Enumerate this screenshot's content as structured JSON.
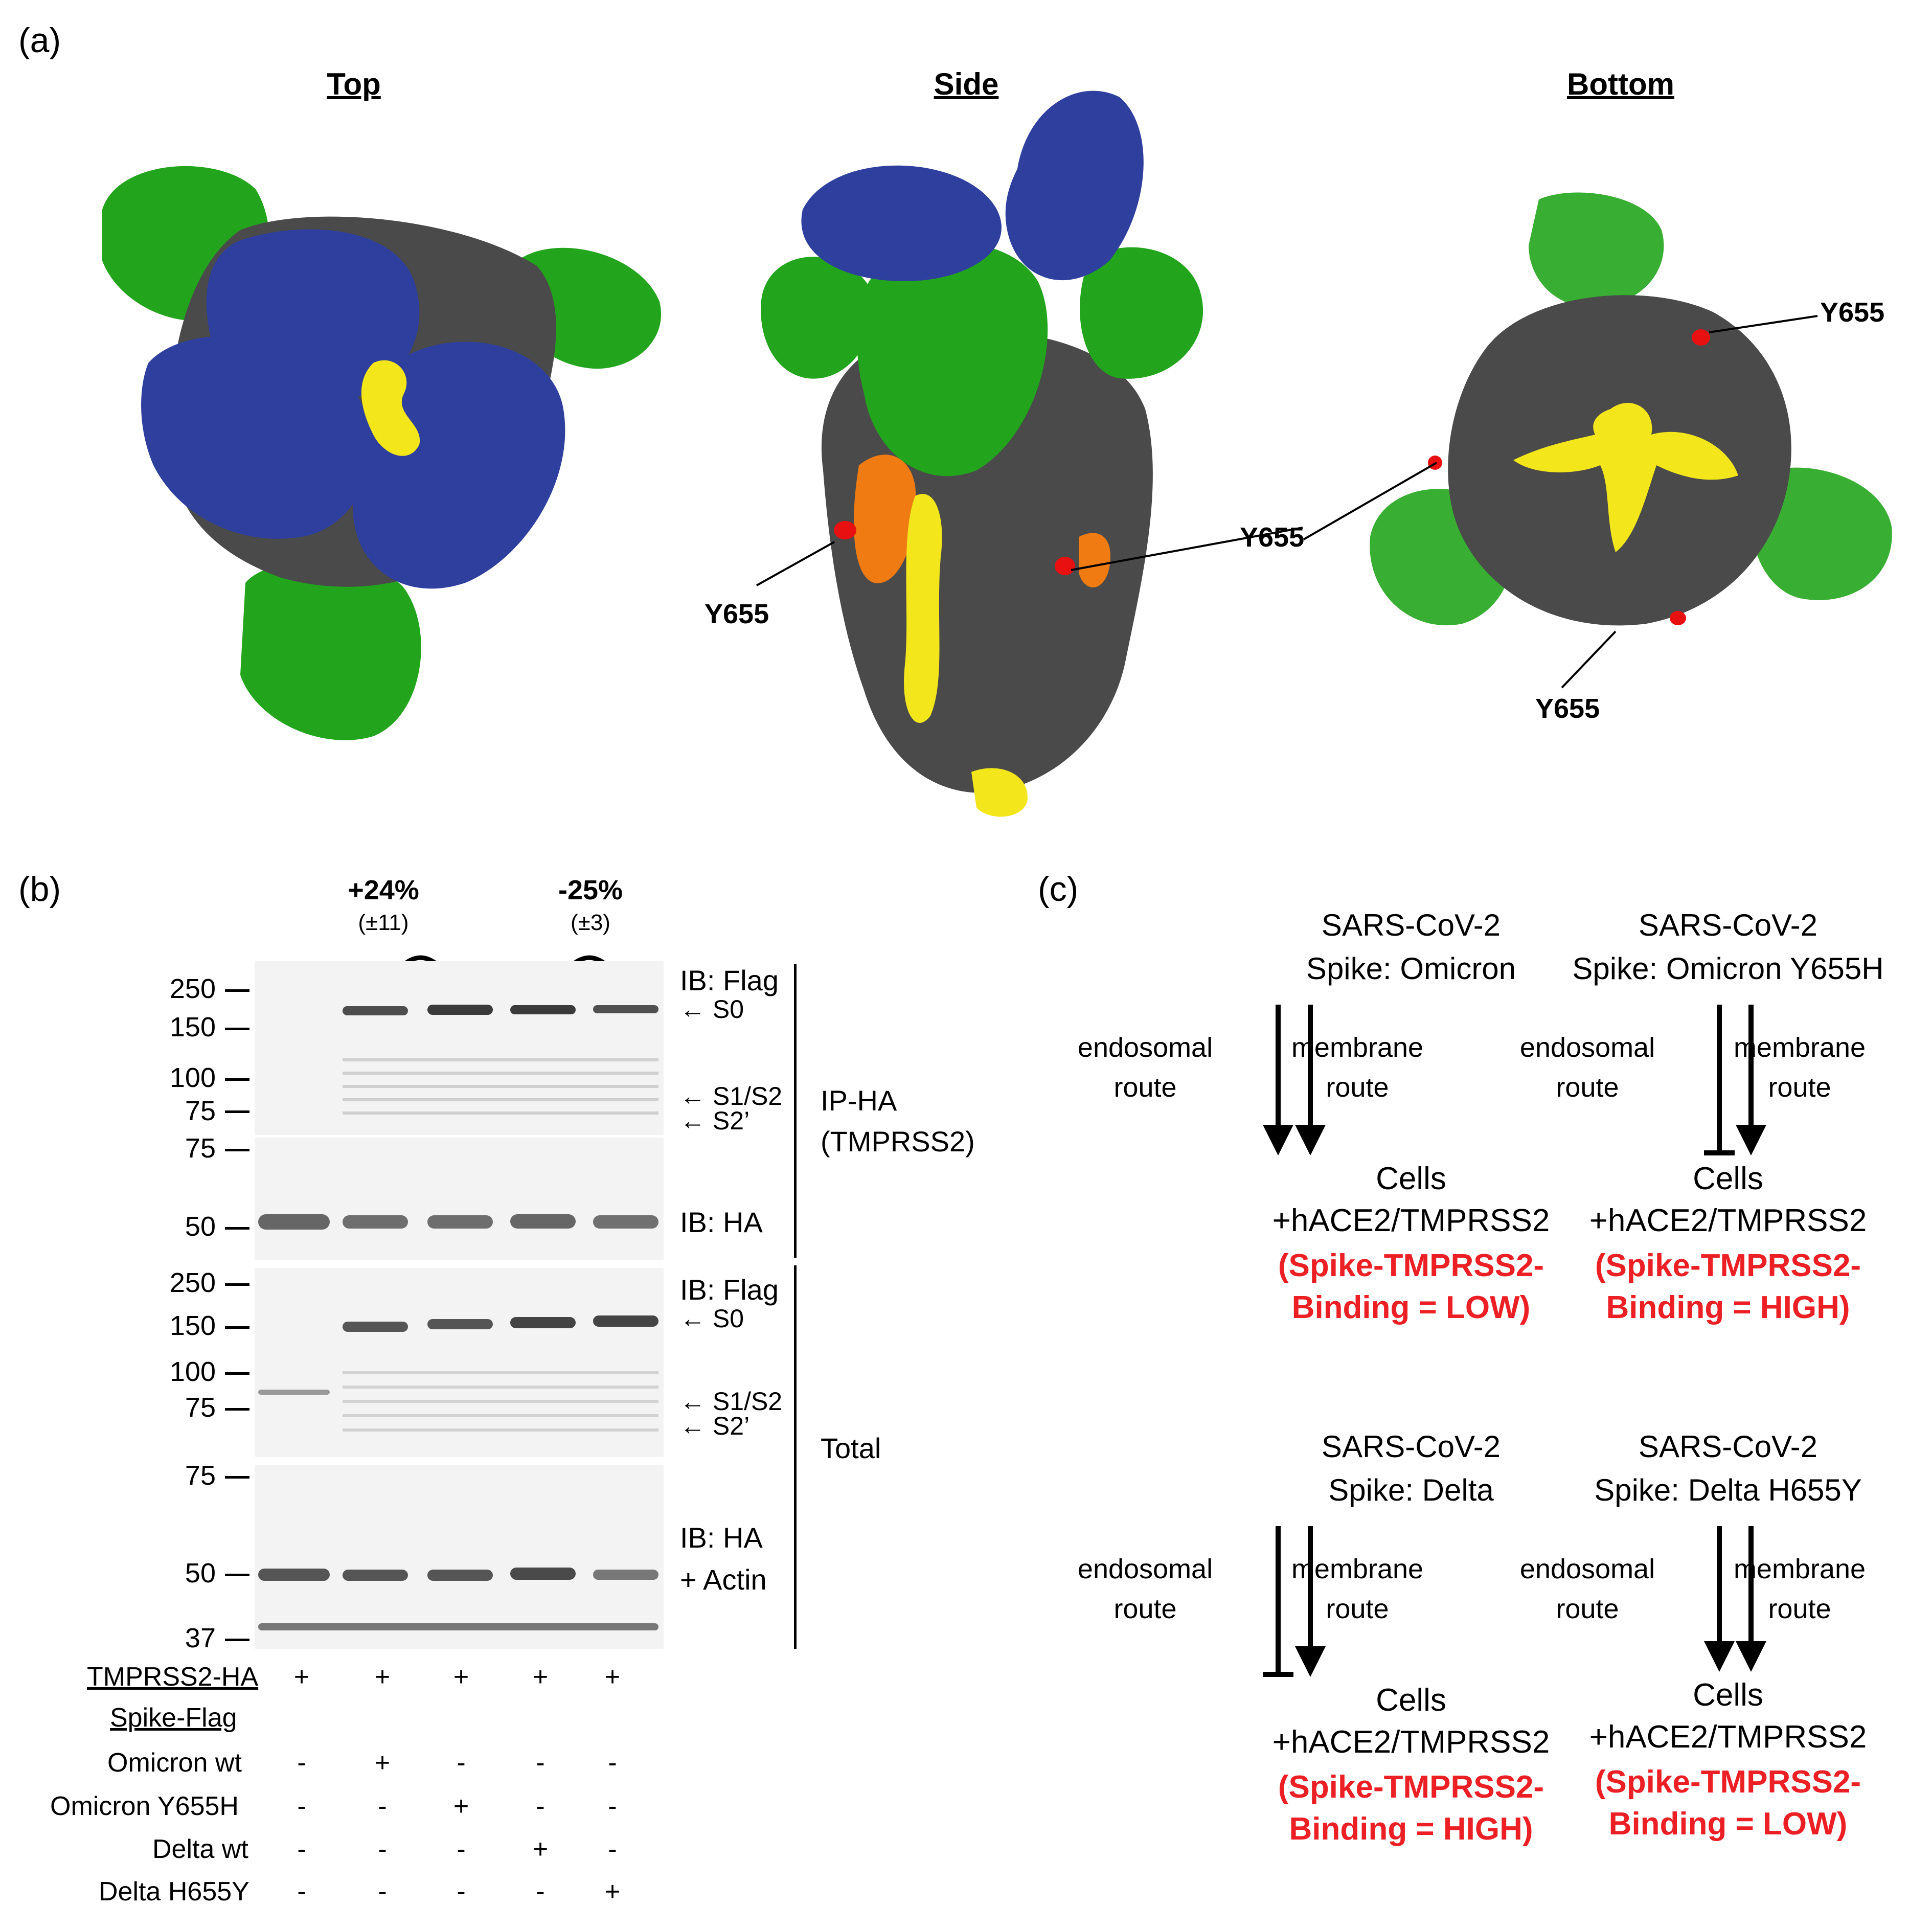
{
  "panels": {
    "a": "(a)",
    "b": "(b)",
    "c": "(c)"
  },
  "panel_a": {
    "views": [
      "Top",
      "Side",
      "Bottom"
    ],
    "residue_label": "Y655",
    "colors": {
      "blue": "#2f3f9e",
      "green": "#22a51c",
      "grey": "#4a4a4a",
      "yellow": "#f3e61a",
      "orange": "#f07b12",
      "red": "#e81010"
    }
  },
  "panel_b": {
    "annotations": [
      {
        "pct": "+24%",
        "pm": "(±11)"
      },
      {
        "pct": "-25%",
        "pm": "(±3)"
      }
    ],
    "blot_top": {
      "mw_flag": [
        "250",
        "150",
        "100",
        "75"
      ],
      "mw_ha": [
        "75",
        "50"
      ],
      "ib_flag": "IB: Flag",
      "ib_ha": "IB: HA",
      "arrows": [
        "S0",
        "S1/S2",
        "S2’"
      ],
      "group": [
        "IP-HA",
        "(TMPRSS2)"
      ]
    },
    "blot_bottom": {
      "mw_flag": [
        "250",
        "150",
        "100",
        "75"
      ],
      "mw_ha": [
        "75",
        "50",
        "37"
      ],
      "ib_flag": "IB: Flag",
      "ib_ha": [
        "IB: HA",
        "+ Actin"
      ],
      "arrows": [
        "S0",
        "S1/S2",
        "S2’"
      ],
      "group": "Total"
    },
    "table": {
      "rows": [
        {
          "label": "TMPRSS2-HA",
          "signs": [
            "+",
            "+",
            "+",
            "+",
            "+"
          ]
        },
        {
          "label": "Spike-Flag",
          "signs": []
        },
        {
          "label": "Omicron wt",
          "signs": [
            "-",
            "+",
            "-",
            "-",
            "-"
          ]
        },
        {
          "label": "Omicron Y655H",
          "signs": [
            "-",
            "-",
            "+",
            "-",
            "-"
          ]
        },
        {
          "label": "Delta wt",
          "signs": [
            "-",
            "-",
            "-",
            "+",
            "-"
          ]
        },
        {
          "label": "Delta H655Y",
          "signs": [
            "-",
            "-",
            "-",
            "-",
            "+"
          ]
        }
      ]
    }
  },
  "panel_c": {
    "route_left": [
      "endosomal",
      "route"
    ],
    "route_right": [
      "membrane",
      "route"
    ],
    "cells": [
      "Cells",
      "+hACE2/TMPRSS2"
    ],
    "blocks": [
      {
        "title": [
          "SARS-CoV-2",
          "Spike: Omicron"
        ],
        "binding": [
          "(Spike-TMPRSS2-",
          "Binding = LOW)"
        ]
      },
      {
        "title": [
          "SARS-CoV-2",
          "Spike: Omicron Y655H"
        ],
        "binding": [
          "(Spike-TMPRSS2-",
          "Binding = HIGH)"
        ]
      },
      {
        "title": [
          "SARS-CoV-2",
          "Spike: Delta"
        ],
        "binding": [
          "(Spike-TMPRSS2-",
          "Binding = HIGH)"
        ]
      },
      {
        "title": [
          "SARS-CoV-2",
          "Spike: Delta H655Y"
        ],
        "binding": [
          "(Spike-TMPRSS2-",
          "Binding = LOW)"
        ]
      }
    ]
  }
}
